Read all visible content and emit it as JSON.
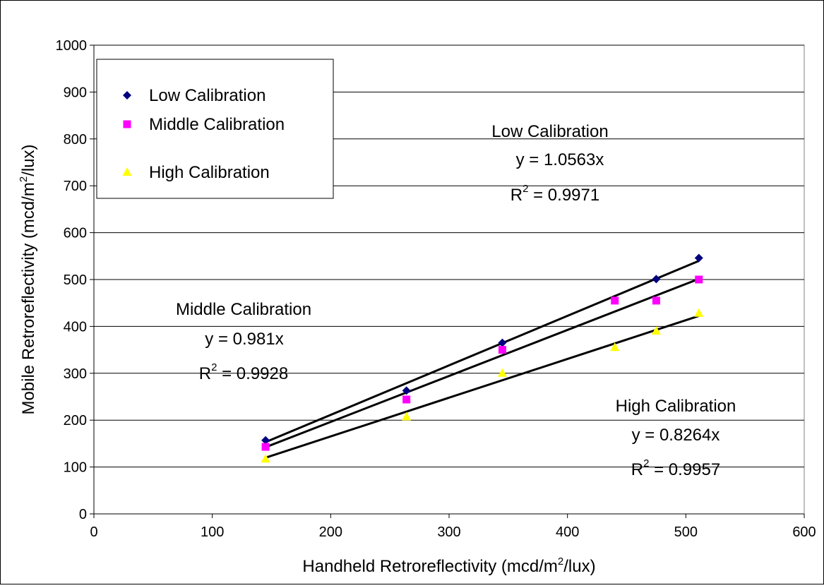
{
  "chart_data": {
    "type": "scatter",
    "title": "",
    "xlabel": {
      "pre": "Handheld Retroreflectivity (mcd/m",
      "sup": "2",
      "post": "/lux)"
    },
    "ylabel": {
      "pre": "Mobile Retroreflectivity (mcd/m",
      "sup": "2",
      "post": "/lux)"
    },
    "xlim": [
      0,
      600
    ],
    "ylim": [
      0,
      1000
    ],
    "x_ticks": [
      0,
      100,
      200,
      300,
      400,
      500,
      600
    ],
    "y_ticks": [
      0,
      100,
      200,
      300,
      400,
      500,
      600,
      700,
      800,
      900,
      1000
    ],
    "grid": "horizontal",
    "legend_position": "top-left",
    "series": [
      {
        "name": "Low Calibration",
        "marker": "diamond",
        "color": "#000080",
        "x": [
          145,
          264,
          345,
          475,
          511
        ],
        "y": [
          157,
          263,
          365,
          501,
          546
        ],
        "trendline_slope": 1.0563,
        "equation": "y = 1.0563x",
        "r2_label": "R",
        "r2_sup": "2",
        "r2_value": " = 0.9971"
      },
      {
        "name": "Middle Calibration",
        "marker": "square",
        "color": "#FF00FF",
        "x": [
          145,
          264,
          345,
          440,
          475,
          511
        ],
        "y": [
          143,
          244,
          350,
          455,
          455,
          500
        ],
        "trendline_slope": 0.981,
        "equation": "y = 0.981x",
        "r2_label": "R",
        "r2_sup": "2",
        "r2_value": " = 0.9928"
      },
      {
        "name": "High Calibration",
        "marker": "triangle",
        "color": "#FFFF00",
        "x": [
          145,
          264,
          345,
          440,
          475,
          511
        ],
        "y": [
          117,
          207,
          300,
          355,
          390,
          428
        ],
        "trendline_slope": 0.8264,
        "equation": "y = 0.8264x",
        "r2_label": "R",
        "r2_sup": "2",
        "r2_value": " = 0.9957"
      }
    ]
  }
}
